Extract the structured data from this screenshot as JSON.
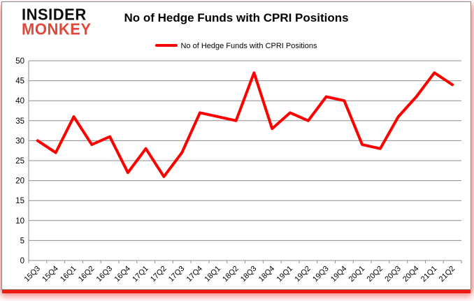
{
  "logo": {
    "line1": "INSIDER",
    "line2": "MONKEY"
  },
  "header": {
    "title": "No of Hedge Funds with CPRI Positions"
  },
  "legend": {
    "label": "No of Hedge Funds with CPRI Positions"
  },
  "colors": {
    "series": "#ff0000",
    "gridline": "#8c8c8c",
    "axis": "#8c8c8c",
    "text": "#000000",
    "logo_red": "#e2473c",
    "border_red": "#ee1b10",
    "background": "#ffffff"
  },
  "chart_data": {
    "type": "line",
    "title": "No of Hedge Funds with CPRI Positions",
    "series_name": "No of Hedge Funds with CPRI Positions",
    "categories": [
      "15Q3",
      "15Q4",
      "16Q1",
      "16Q2",
      "16Q3",
      "16Q4",
      "17Q1",
      "17Q2",
      "17Q3",
      "17Q4",
      "18Q1",
      "18Q2",
      "18Q3",
      "18Q4",
      "19Q1",
      "19Q2",
      "19Q3",
      "19Q4",
      "20Q1",
      "20Q2",
      "20Q3",
      "20Q4",
      "21Q1",
      "21Q2"
    ],
    "values": [
      30,
      27,
      36,
      29,
      31,
      22,
      28,
      21,
      27,
      37,
      36,
      35,
      47,
      33,
      37,
      35,
      41,
      40,
      29,
      28,
      36,
      41,
      47,
      44
    ],
    "xlabel": "",
    "ylabel": "",
    "ylim": [
      0,
      50
    ],
    "ytick_step": 5,
    "grid": true,
    "legend_position": "top-center",
    "line_width": 4
  }
}
